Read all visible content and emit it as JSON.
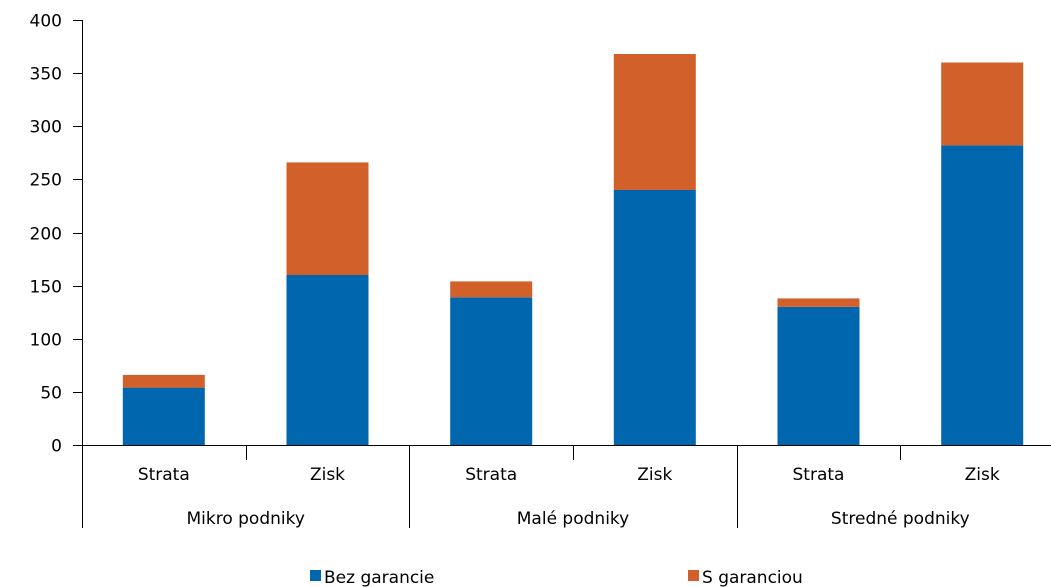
{
  "chart_data": {
    "type": "bar",
    "stacked": true,
    "groups": [
      "Mikro podniky",
      "Malé podniky",
      "Stredné podniky"
    ],
    "categories": [
      "Strata",
      "Zisk",
      "Strata",
      "Zisk",
      "Strata",
      "Zisk"
    ],
    "series": [
      {
        "name": "Bez garancie",
        "values": [
          54,
          160,
          139,
          240,
          130,
          282
        ]
      },
      {
        "name": "S garanciou",
        "values": [
          12,
          106,
          15,
          128,
          8,
          78
        ]
      }
    ],
    "ylim": [
      0,
      400
    ],
    "yticks": [
      0,
      50,
      100,
      150,
      200,
      250,
      300,
      350,
      400
    ],
    "grid": false,
    "legend": "bottom",
    "colors": {
      "Bez garancie": "#0066ad",
      "S garanciou": "#d2602a"
    }
  }
}
